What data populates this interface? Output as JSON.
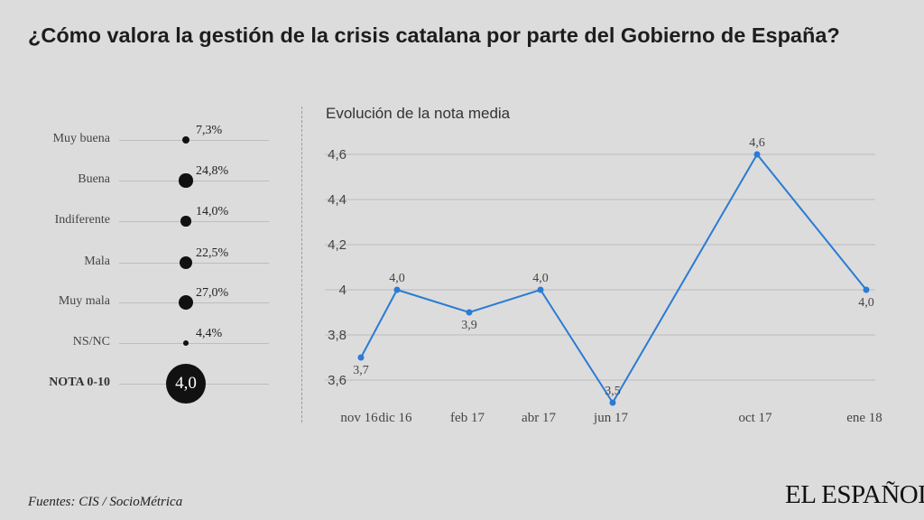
{
  "title": "¿Cómo valora la gestión de la crisis catalana por parte del Gobierno de España?",
  "ratings": [
    {
      "label": "Muy buena",
      "value": "7,3%",
      "pct": 7.3
    },
    {
      "label": "Buena",
      "value": "24,8%",
      "pct": 24.8
    },
    {
      "label": "Indiferente",
      "value": "14,0%",
      "pct": 14.0
    },
    {
      "label": "Mala",
      "value": "22,5%",
      "pct": 22.5
    },
    {
      "label": "Muy mala",
      "value": "27,0%",
      "pct": 27.0
    },
    {
      "label": "NS/NC",
      "value": "4,4%",
      "pct": 4.4
    }
  ],
  "nota": {
    "label": "NOTA 0-10",
    "value": "4,0"
  },
  "chart_data": {
    "type": "line",
    "title": "Evolución de la nota media",
    "xlabel": "",
    "ylabel": "",
    "x": [
      "nov 16",
      "dic 16",
      "feb 17",
      "abr 17",
      "jun 17",
      "oct 17",
      "ene 18"
    ],
    "values": [
      3.7,
      4.0,
      3.9,
      4.0,
      3.5,
      4.6,
      4.0
    ],
    "data_labels": [
      "3,7",
      "4,0",
      "3,9",
      "4,0",
      "3,5",
      "4,6",
      "4,0"
    ],
    "label_positions": [
      "below",
      "above",
      "below",
      "above",
      "above",
      "above",
      "below"
    ],
    "yticks": [
      "3,6",
      "3,8",
      "4",
      "4,2",
      "4,4",
      "4,6"
    ],
    "ylim": [
      3.5,
      4.6
    ],
    "grid": true,
    "color": "#2a7bd3"
  },
  "footer": {
    "source": "Fuentes: CIS / SocioMétrica",
    "logo": "EL ESPAÑOL"
  }
}
